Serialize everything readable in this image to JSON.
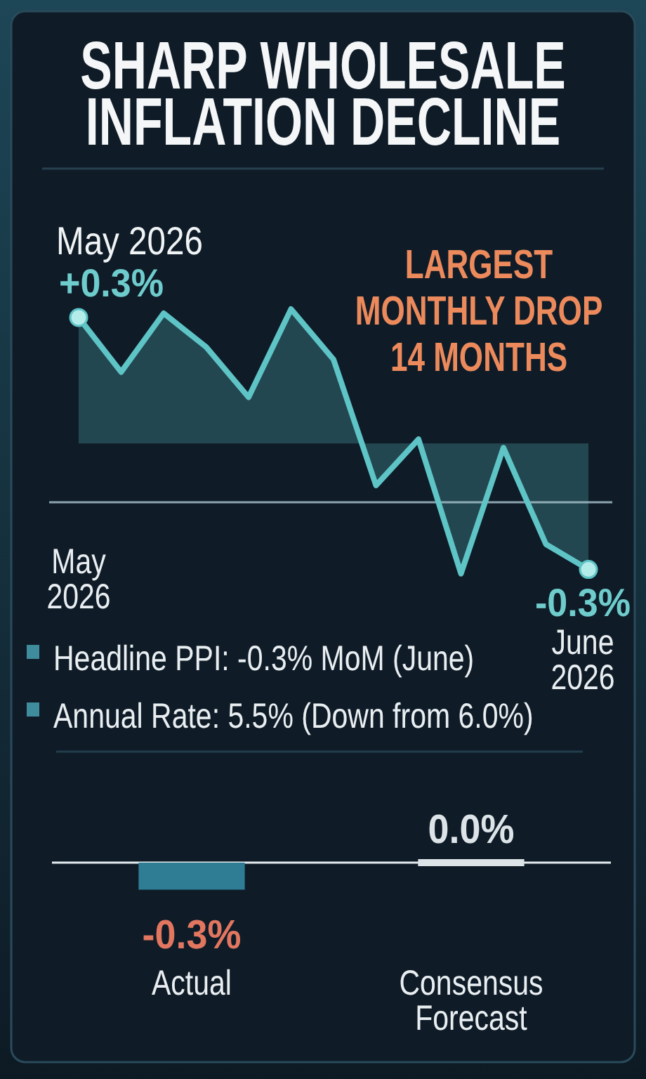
{
  "chart_data": [
    {
      "type": "area",
      "title": "SHARP WHOLESALE INFLATION DECLINE",
      "categories": [
        "May 2026",
        null,
        null,
        null,
        null,
        null,
        null,
        null,
        null,
        null,
        null,
        null,
        "June 2026"
      ],
      "values": [
        0.3,
        0.17,
        0.31,
        0.23,
        0.11,
        0.32,
        0.2,
        -0.1,
        0.01,
        -0.31,
        -0.01,
        -0.24,
        -0.3
      ],
      "value_labels": [
        "+0.3%",
        null,
        null,
        null,
        null,
        null,
        null,
        null,
        null,
        null,
        null,
        null,
        "-0.3%"
      ],
      "color": "#5ec4c6",
      "tick_labels": "x",
      "ref_lines": [
        {
          "axis": "y",
          "value": -0.14
        }
      ],
      "annotations": [
        "LARGEST MONTHLY DROP 14 MONTHS",
        {
          "text": "May 2026",
          "x": "May 2026",
          "y": 0.3
        },
        "Headline PPI: -0.3% MoM (June)",
        "Annual Rate: 5.5% (Down from 6.0%)"
      ]
    },
    {
      "type": "bar",
      "categories": [
        "Actual",
        "Consensus Forecast"
      ],
      "values": [
        -0.3,
        0.0
      ],
      "colors": [
        "#2f7d94",
        "#dde4e8"
      ],
      "value_labels": [
        "-0.3%",
        "0.0%"
      ],
      "tick_labels": "x"
    }
  ]
}
